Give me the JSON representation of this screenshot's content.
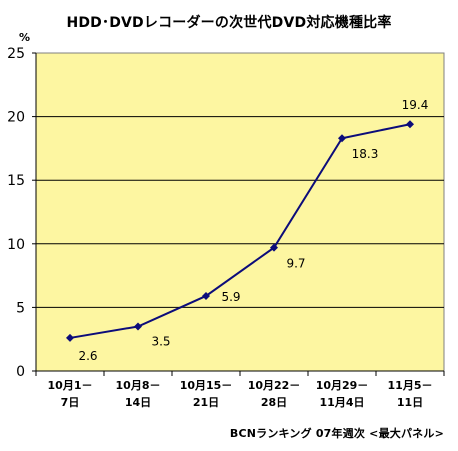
{
  "title": "HDD･DVDレコーダーの次世代DVD対応機種比率",
  "source_note": "BCNランキング 07年週次 <最大パネル>",
  "chart_data": {
    "type": "line",
    "title": "HDD･DVDレコーダーの次世代DVD対応機種比率",
    "ylabel": "%",
    "xlabel": "",
    "ylim": [
      0,
      25
    ],
    "yticks": [
      0,
      5,
      10,
      15,
      20,
      25
    ],
    "grid": true,
    "legend": "none",
    "categories": [
      [
        "10月1－",
        "7日"
      ],
      [
        "10月8－",
        "14日"
      ],
      [
        "10月15－",
        "21日"
      ],
      [
        "10月22－",
        "28日"
      ],
      [
        "10月29－",
        "11月4日"
      ],
      [
        "11月5－",
        "11日"
      ]
    ],
    "series": [
      {
        "values": [
          2.6,
          3.5,
          5.9,
          9.7,
          18.3,
          19.4
        ],
        "labels": [
          "2.6",
          "3.5",
          "5.9",
          "9.7",
          "18.3",
          "19.4"
        ],
        "color": "#0c0c7a"
      }
    ],
    "plot_background": "#fdf6a1",
    "border_color": "#808080",
    "grid_color": "#000000"
  }
}
